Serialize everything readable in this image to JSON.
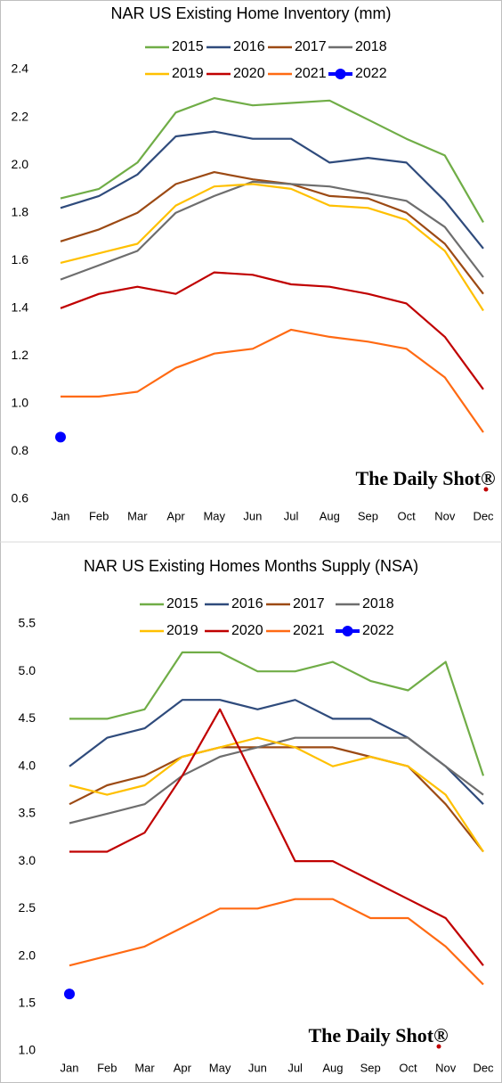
{
  "chart_data": [
    {
      "type": "line",
      "title": "NAR US Existing Home Inventory (mm)",
      "watermark": "The Daily Shot®",
      "categories": [
        "Jan",
        "Feb",
        "Mar",
        "Apr",
        "May",
        "Jun",
        "Jul",
        "Aug",
        "Sep",
        "Oct",
        "Nov",
        "Dec"
      ],
      "ylim": [
        0.6,
        2.4
      ],
      "yticks": [
        0.6,
        0.8,
        {
          "value": 1,
          "label": "1.0"
        },
        1.2,
        1.4,
        1.6,
        1.8,
        {
          "value": 2,
          "label": "2.0"
        },
        2.2,
        2.4
      ],
      "series": [
        {
          "name": "2015",
          "color": "#70ad47",
          "values": [
            1.86,
            1.9,
            2.01,
            2.22,
            2.28,
            2.25,
            2.26,
            2.27,
            2.19,
            2.11,
            2.04,
            1.76
          ]
        },
        {
          "name": "2016",
          "color": "#2f4b7c",
          "values": [
            1.82,
            1.87,
            1.96,
            2.12,
            2.14,
            2.11,
            2.11,
            2.01,
            2.03,
            2.01,
            1.85,
            1.65
          ]
        },
        {
          "name": "2017",
          "color": "#9c4a14",
          "values": [
            1.68,
            1.73,
            1.8,
            1.92,
            1.97,
            1.94,
            1.92,
            1.87,
            1.86,
            1.8,
            1.67,
            1.46
          ]
        },
        {
          "name": "2018",
          "color": "#6e6e6e",
          "values": [
            1.52,
            1.58,
            1.64,
            1.8,
            1.87,
            1.93,
            1.92,
            1.91,
            1.88,
            1.85,
            1.74,
            1.53
          ]
        },
        {
          "name": "2019",
          "color": "#ffc000",
          "values": [
            1.59,
            1.63,
            1.67,
            1.83,
            1.91,
            1.92,
            1.9,
            1.83,
            1.82,
            1.77,
            1.64,
            1.39
          ]
        },
        {
          "name": "2020",
          "color": "#c00000",
          "values": [
            1.4,
            1.46,
            1.49,
            1.46,
            1.55,
            1.54,
            1.5,
            1.49,
            1.46,
            1.42,
            1.28,
            1.06
          ]
        },
        {
          "name": "2021",
          "color": "#ff6a13",
          "values": [
            1.03,
            1.03,
            1.05,
            1.15,
            1.21,
            1.23,
            1.31,
            1.28,
            1.26,
            1.23,
            1.11,
            0.88
          ]
        },
        {
          "name": "2022",
          "color": "#0000ff",
          "marker": "circle",
          "values": [
            0.86,
            null,
            null,
            null,
            null,
            null,
            null,
            null,
            null,
            null,
            null,
            null
          ]
        }
      ]
    },
    {
      "type": "line",
      "title": "NAR US Existing Homes Months Supply (NSA)",
      "watermark": "The Daily Shot®",
      "categories": [
        "Jan",
        "Feb",
        "Mar",
        "Apr",
        "May",
        "Jun",
        "Jul",
        "Aug",
        "Sep",
        "Oct",
        "Nov",
        "Dec"
      ],
      "ylim": [
        1,
        5.5
      ],
      "yticks": [
        {
          "value": 1,
          "label": "1.0"
        },
        1.5,
        {
          "value": 2,
          "label": "2.0"
        },
        2.5,
        {
          "value": 3,
          "label": "3.0"
        },
        3.5,
        {
          "value": 4,
          "label": "4.0"
        },
        4.5,
        {
          "value": 5,
          "label": "5.0"
        },
        5.5
      ],
      "series": [
        {
          "name": "2015",
          "color": "#70ad47",
          "values": [
            4.5,
            4.5,
            4.6,
            5.2,
            5.2,
            5.0,
            5.0,
            5.1,
            4.9,
            4.8,
            5.1,
            3.9
          ]
        },
        {
          "name": "2016",
          "color": "#2f4b7c",
          "values": [
            4.0,
            4.3,
            4.4,
            4.7,
            4.7,
            4.6,
            4.7,
            4.5,
            4.5,
            4.3,
            4.0,
            3.6
          ]
        },
        {
          "name": "2017",
          "color": "#9c4a14",
          "values": [
            3.6,
            3.8,
            3.9,
            4.1,
            4.2,
            4.2,
            4.2,
            4.2,
            4.1,
            4.0,
            3.6,
            3.1
          ]
        },
        {
          "name": "2018",
          "color": "#6e6e6e",
          "values": [
            3.4,
            3.5,
            3.6,
            3.9,
            4.1,
            4.2,
            4.3,
            4.3,
            4.3,
            4.3,
            4.0,
            3.7
          ]
        },
        {
          "name": "2019",
          "color": "#ffc000",
          "values": [
            3.8,
            3.7,
            3.8,
            4.1,
            4.2,
            4.3,
            4.2,
            4.0,
            4.1,
            4.0,
            3.7,
            3.1
          ]
        },
        {
          "name": "2020",
          "color": "#c00000",
          "values": [
            3.1,
            3.1,
            3.3,
            3.9,
            4.6,
            3.8,
            3.0,
            3.0,
            2.8,
            2.6,
            2.4,
            1.9
          ]
        },
        {
          "name": "2021",
          "color": "#ff6a13",
          "values": [
            1.9,
            2.0,
            2.1,
            2.3,
            2.5,
            2.5,
            2.6,
            2.6,
            2.4,
            2.4,
            2.1,
            1.7
          ]
        },
        {
          "name": "2022",
          "color": "#0000ff",
          "marker": "circle",
          "values": [
            1.6,
            null,
            null,
            null,
            null,
            null,
            null,
            null,
            null,
            null,
            null,
            null
          ]
        }
      ]
    }
  ]
}
